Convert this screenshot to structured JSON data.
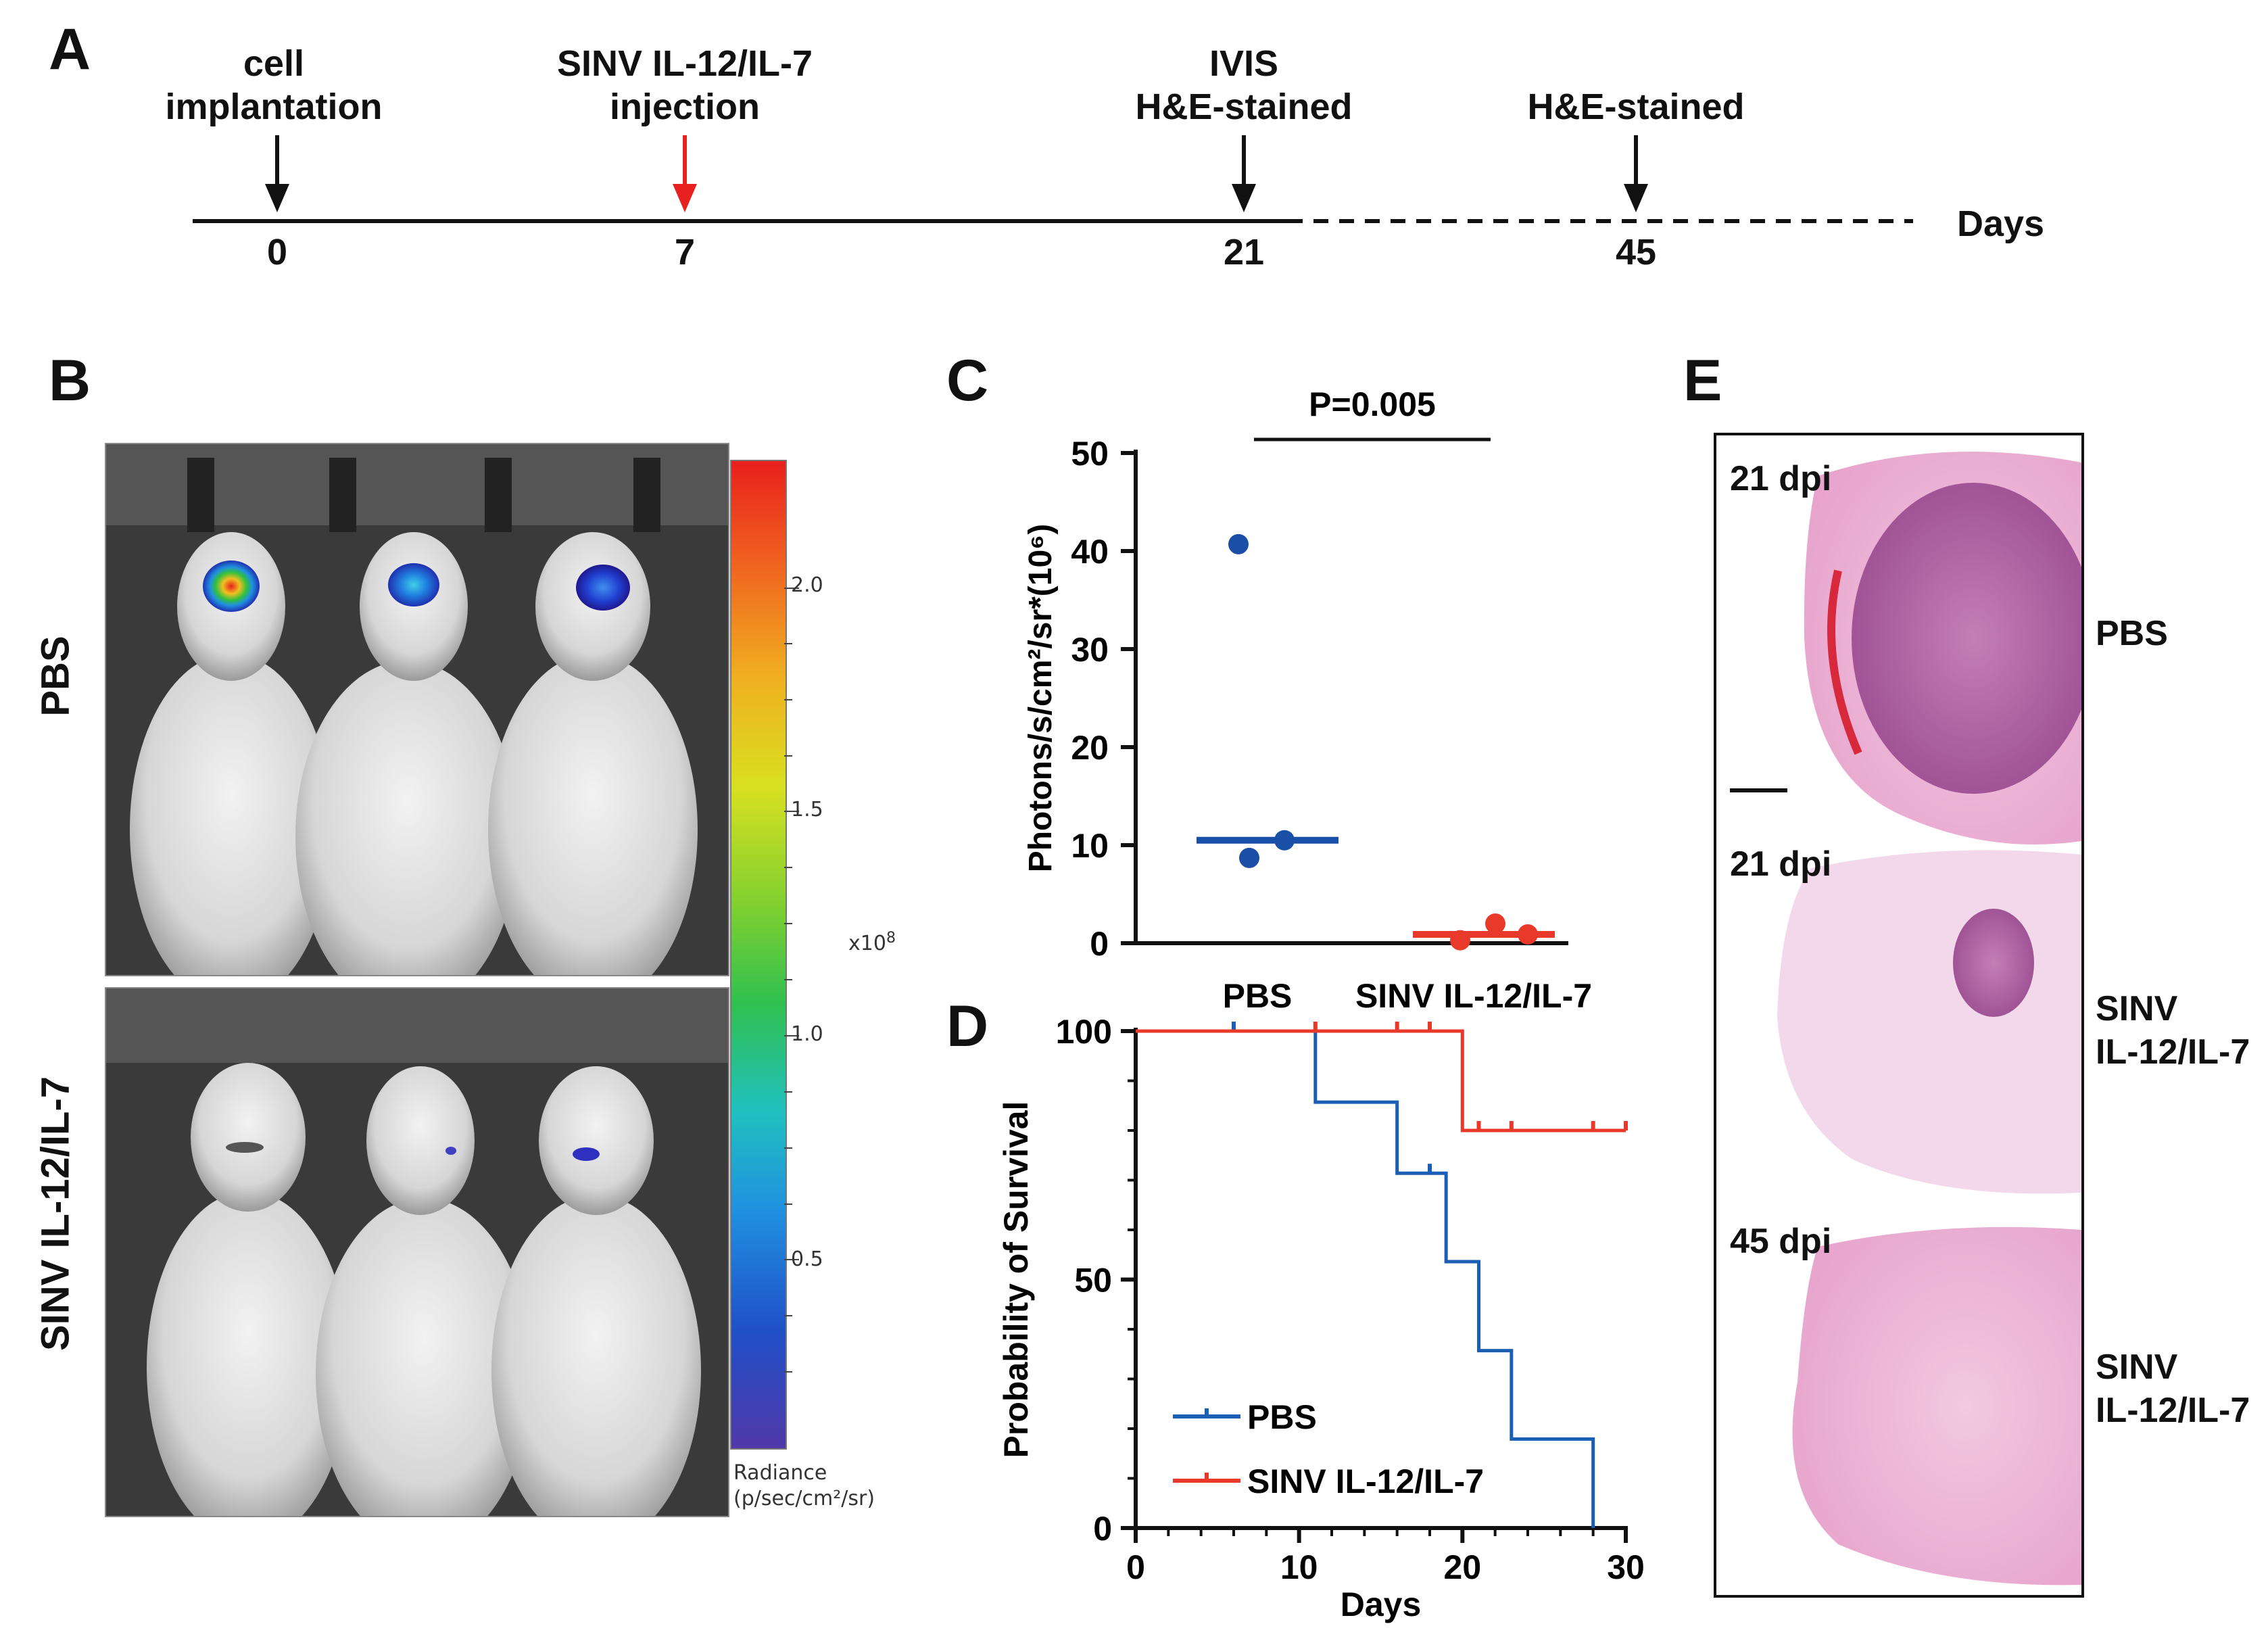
{
  "panel_a": {
    "letter": "A",
    "events": [
      {
        "label_line1": "cell",
        "label_line2": "implantation",
        "day": "0"
      },
      {
        "label_line1": "SINV IL-12/IL-7",
        "label_line2": "injection",
        "day": "7"
      },
      {
        "label_line1": "IVIS",
        "label_line2": "H&E-stained",
        "day": "21"
      },
      {
        "label_line1": "",
        "label_line2": "H&E-stained",
        "day": "45"
      }
    ],
    "axis_label": "Days",
    "arrow_color_injection": "#e82020",
    "arrow_color_default": "#111111"
  },
  "panel_b": {
    "letter": "B",
    "row_labels": [
      "PBS",
      "SINV IL-12/IL-7"
    ],
    "colorbar_ticks": [
      "2.0",
      "1.5",
      "1.0",
      "0.5"
    ],
    "colorbar_multiplier": "x10",
    "colorbar_exponent": "8",
    "colorbar_title_line1": "Radiance",
    "colorbar_title_line2": "(p/sec/cm²/sr)"
  },
  "panel_c": {
    "letter": "C",
    "pvalue": "P=0.005"
  },
  "panel_d": {
    "letter": "D"
  },
  "panel_e": {
    "letter": "E",
    "sections": [
      {
        "dpi": "21 dpi",
        "group_line1": "PBS",
        "group_line2": ""
      },
      {
        "dpi": "21 dpi",
        "group_line1": "SINV",
        "group_line2": "IL-12/IL-7"
      },
      {
        "dpi": "45 dpi",
        "group_line1": "SINV",
        "group_line2": "IL-12/IL-7"
      }
    ]
  },
  "chart_data": [
    {
      "type": "scatter",
      "panel": "C",
      "ylabel": "Photons/s/cm²/sr*(10⁶)",
      "ylim": [
        0,
        50
      ],
      "yticks": [
        "0",
        "10",
        "20",
        "30",
        "40",
        "50"
      ],
      "categories": [
        "PBS",
        "SINV IL-12/IL-7"
      ],
      "series": [
        {
          "name": "PBS",
          "color": "#1a4fa8",
          "points": [
            [
              -0.07,
              40.7
            ],
            [
              -0.03,
              8.7
            ],
            [
              0.1,
              10.5
            ]
          ],
          "median": 10.5
        },
        {
          "name": "SINV IL-12/IL-7",
          "color": "#e8392a",
          "points": [
            [
              -0.05,
              0.3
            ],
            [
              0.08,
              2.0
            ],
            [
              0.2,
              0.9
            ]
          ],
          "median": 0.9
        }
      ]
    },
    {
      "type": "line",
      "panel": "D",
      "xlabel": "Days",
      "ylabel": "Probability of Survival",
      "xlim": [
        0,
        30
      ],
      "ylim": [
        0,
        100
      ],
      "xticks": [
        "0",
        "10",
        "20",
        "30"
      ],
      "yticks": [
        "0",
        "50",
        "100"
      ],
      "series": [
        {
          "name": "PBS",
          "color": "#1a5fb4",
          "steps": [
            [
              0,
              100
            ],
            [
              11,
              85.7
            ],
            [
              16,
              71.4
            ],
            [
              19,
              53.6
            ],
            [
              21,
              35.7
            ],
            [
              23,
              17.9
            ],
            [
              28,
              0
            ]
          ],
          "censored": [
            [
              6,
              100
            ],
            [
              18,
              71.4
            ]
          ]
        },
        {
          "name": "SINV IL-12/IL-7",
          "color": "#e8392a",
          "steps": [
            [
              0,
              100
            ],
            [
              20,
              80
            ],
            [
              30,
              80
            ]
          ],
          "censored": [
            [
              11,
              100
            ],
            [
              16,
              100
            ],
            [
              18,
              100
            ],
            [
              21,
              80
            ],
            [
              23,
              80
            ],
            [
              28,
              80
            ],
            [
              30,
              80
            ]
          ]
        }
      ]
    }
  ]
}
